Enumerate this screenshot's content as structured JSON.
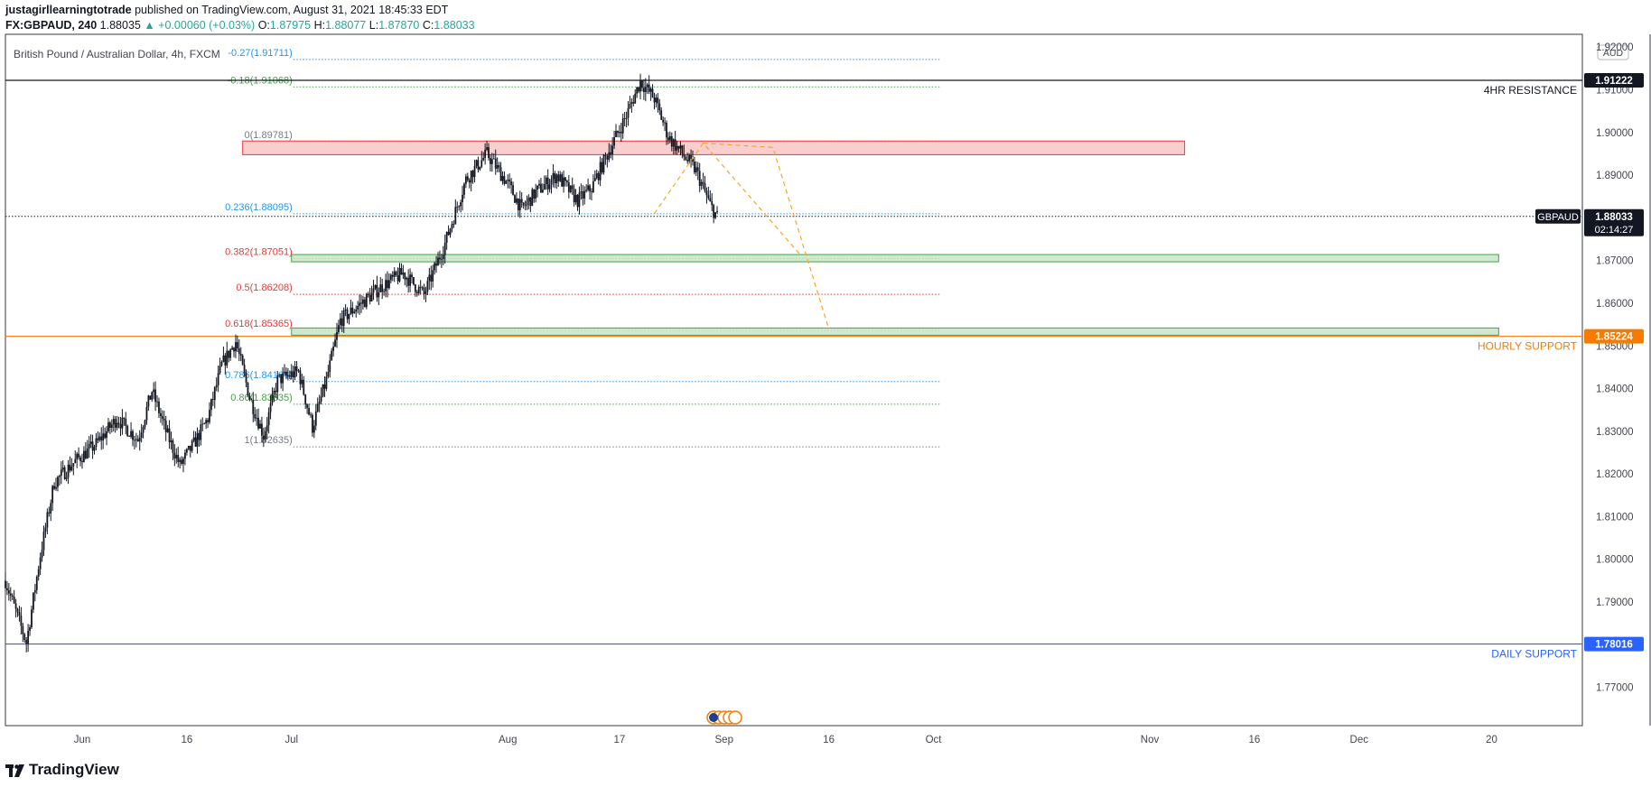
{
  "header": {
    "author": "justagirllearningtotrade",
    "published_text": "published on TradingView.com, August 31, 2021 18:45:33 EDT",
    "symbol": "FX:GBPAUD, 240",
    "last": "1.88035",
    "change": "▲ +0.00060 (+0.03%)",
    "o_label": "O:",
    "o": "1.87975",
    "h_label": "H:",
    "h": "1.88077",
    "l_label": "L:",
    "l": "1.87870",
    "c_label": "C:",
    "c": "1.88033"
  },
  "brand": {
    "name": "TradingView",
    "icon": "tradingview-logo-icon"
  },
  "chart_data": {
    "type": "candlestick",
    "title": "British Pound / Australian Dollar, 4h, FXCM",
    "currency_badge": "AUD",
    "y_range": [
      1.764,
      1.923
    ],
    "y_ticks": [
      "1.92000",
      "1.91000",
      "1.90000",
      "1.89000",
      "1.88000",
      "1.87000",
      "1.86000",
      "1.85000",
      "1.84000",
      "1.83000",
      "1.82000",
      "1.81000",
      "1.80000",
      "1.79000",
      "1.78000",
      "1.77000"
    ],
    "x_ticks": [
      {
        "label": "Jun",
        "date": "2021-06-01"
      },
      {
        "label": "16",
        "date": "2021-06-16"
      },
      {
        "label": "Jul",
        "date": "2021-07-01"
      },
      {
        "label": "Aug",
        "date": "2021-08-01"
      },
      {
        "label": "17",
        "date": "2021-08-17"
      },
      {
        "label": "Sep",
        "date": "2021-09-01"
      },
      {
        "label": "16",
        "date": "2021-09-16"
      },
      {
        "label": "Oct",
        "date": "2021-10-01"
      },
      {
        "label": "Nov",
        "date": "2021-11-01"
      },
      {
        "label": "16",
        "date": "2021-11-16"
      },
      {
        "label": "Dec",
        "date": "2021-12-01"
      },
      {
        "label": "20",
        "date": "2021-12-20"
      }
    ],
    "x_range": [
      "2021-05-21",
      "2022-01-02"
    ],
    "price_path": [
      [
        "2021-05-21",
        1.795
      ],
      [
        "2021-05-24",
        1.7805
      ],
      [
        "2021-05-26",
        1.801
      ],
      [
        "2021-05-28",
        1.818
      ],
      [
        "2021-05-31",
        1.823
      ],
      [
        "2021-06-03",
        1.827
      ],
      [
        "2021-06-06",
        1.833
      ],
      [
        "2021-06-09",
        1.828
      ],
      [
        "2021-06-11",
        1.8395
      ],
      [
        "2021-06-13",
        1.83
      ],
      [
        "2021-06-15",
        1.822
      ],
      [
        "2021-06-17",
        1.827
      ],
      [
        "2021-06-19",
        1.833
      ],
      [
        "2021-06-21",
        1.8455
      ],
      [
        "2021-06-23",
        1.851
      ],
      [
        "2021-06-25",
        1.838
      ],
      [
        "2021-06-27",
        1.829
      ],
      [
        "2021-06-29",
        1.842
      ],
      [
        "2021-07-02",
        1.844
      ],
      [
        "2021-07-04",
        1.831
      ],
      [
        "2021-07-06",
        1.842
      ],
      [
        "2021-07-08",
        1.856
      ],
      [
        "2021-07-11",
        1.86
      ],
      [
        "2021-07-14",
        1.864
      ],
      [
        "2021-07-17",
        1.867
      ],
      [
        "2021-07-20",
        1.862
      ],
      [
        "2021-07-23",
        1.874
      ],
      [
        "2021-07-26",
        1.889
      ],
      [
        "2021-07-29",
        1.895
      ],
      [
        "2021-08-01",
        1.888
      ],
      [
        "2021-08-03",
        1.882
      ],
      [
        "2021-08-05",
        1.886
      ],
      [
        "2021-08-08",
        1.89
      ],
      [
        "2021-08-11",
        1.884
      ],
      [
        "2021-08-13",
        1.887
      ],
      [
        "2021-08-15",
        1.894
      ],
      [
        "2021-08-18",
        1.904
      ],
      [
        "2021-08-20",
        1.912
      ],
      [
        "2021-08-22",
        1.908
      ],
      [
        "2021-08-24",
        1.899
      ],
      [
        "2021-08-26",
        1.895
      ],
      [
        "2021-08-28",
        1.891
      ],
      [
        "2021-08-30",
        1.883
      ],
      [
        "2021-08-31",
        1.8803
      ]
    ],
    "levels": [
      {
        "label": "4HR RESISTANCE",
        "price": 1.91222,
        "price_label": "1.91222",
        "color": "#131722",
        "box_text_color": "#ffffff"
      },
      {
        "label": "HOURLY SUPPORT",
        "price": 1.85224,
        "price_label": "1.85224",
        "color": "#f57c00",
        "box_text_color": "#ffffff"
      },
      {
        "label": "DAILY SUPPORT",
        "price": 1.78016,
        "price_label": "1.78016",
        "color": "#2962ff",
        "box_text_color": "#ffffff"
      }
    ],
    "current_price": {
      "symbol": "GBPAUD",
      "price": 1.88033,
      "price_label": "1.88033",
      "countdown": "02:14:27"
    },
    "fib_levels": [
      {
        "label": "-0.27(1.91711)",
        "price": 1.91711,
        "color": "#2196f3"
      },
      {
        "label": "-0.18(1.91068)",
        "price": 1.91068,
        "color": "#43a047"
      },
      {
        "label": "0(1.89781)",
        "price": 1.89781,
        "color": "#787b86"
      },
      {
        "label": "0.236(1.88095)",
        "price": 1.88095,
        "color": "#2196f3"
      },
      {
        "label": "0.382(1.87051)",
        "price": 1.87051,
        "color": "#e53935"
      },
      {
        "label": "0.5(1.86208)",
        "price": 1.86208,
        "color": "#e53935"
      },
      {
        "label": "0.618(1.85365)",
        "price": 1.85365,
        "color": "#e53935"
      },
      {
        "label": "0.786(1.84164)",
        "price": 1.84164,
        "color": "#2196f3"
      },
      {
        "label": "0.86(1.83635)",
        "price": 1.83635,
        "color": "#43a047"
      },
      {
        "label": "1(1.82635)",
        "price": 1.82635,
        "color": "#787b86"
      }
    ],
    "fib_range": [
      "2021-07-01",
      "2021-10-01"
    ],
    "zones": [
      {
        "kind": "resistance",
        "from": "2021-06-24",
        "to": "2021-11-06",
        "top": 1.898,
        "bottom": 1.8948,
        "fill": "#f7c6c6",
        "stroke": "#e53935"
      },
      {
        "kind": "support",
        "from": "2021-07-01",
        "to": "2021-12-21",
        "top": 1.8714,
        "bottom": 1.8697,
        "fill": "#c8e6c9",
        "stroke": "#43a047"
      },
      {
        "kind": "support",
        "from": "2021-07-01",
        "to": "2021-12-21",
        "top": 1.8542,
        "bottom": 1.8527,
        "fill": "#c8e6c9",
        "stroke": "#43a047"
      }
    ],
    "projection_paths": [
      [
        [
          "2021-08-22",
          1.881
        ],
        [
          "2021-08-29",
          1.8975
        ],
        [
          "2021-09-12",
          1.8712
        ]
      ],
      [
        [
          "2021-08-29",
          1.8975
        ],
        [
          "2021-09-08",
          1.8965
        ],
        [
          "2021-09-16",
          1.854
        ]
      ]
    ],
    "projection_color": "#f5a623"
  }
}
